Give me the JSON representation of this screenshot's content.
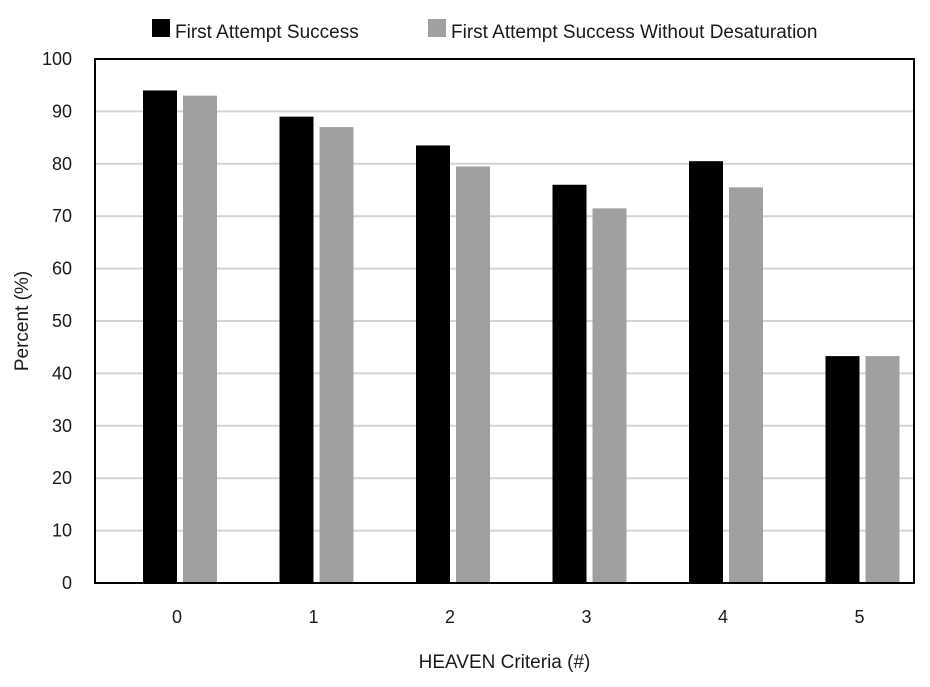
{
  "chart_data": {
    "type": "bar",
    "title": "",
    "xlabel": "HEAVEN Criteria  (#)",
    "ylabel": "Percent  (%)",
    "categories": [
      "0",
      "1",
      "2",
      "3",
      "4",
      "5"
    ],
    "ylim": [
      0,
      100
    ],
    "yticks": [
      "0",
      "10",
      "20",
      "30",
      "40",
      "50",
      "60",
      "70",
      "80",
      "90",
      "100"
    ],
    "grid": true,
    "legend_position": "top",
    "series": [
      {
        "name": "First Attempt Success",
        "color": "#000000",
        "values": [
          94,
          89,
          83.5,
          76,
          80.5,
          43.3
        ]
      },
      {
        "name": "First Attempt Success Without Desaturation",
        "color": "#a0a0a0",
        "values": [
          93,
          87,
          79.5,
          71.5,
          75.5,
          43.3
        ]
      }
    ]
  }
}
